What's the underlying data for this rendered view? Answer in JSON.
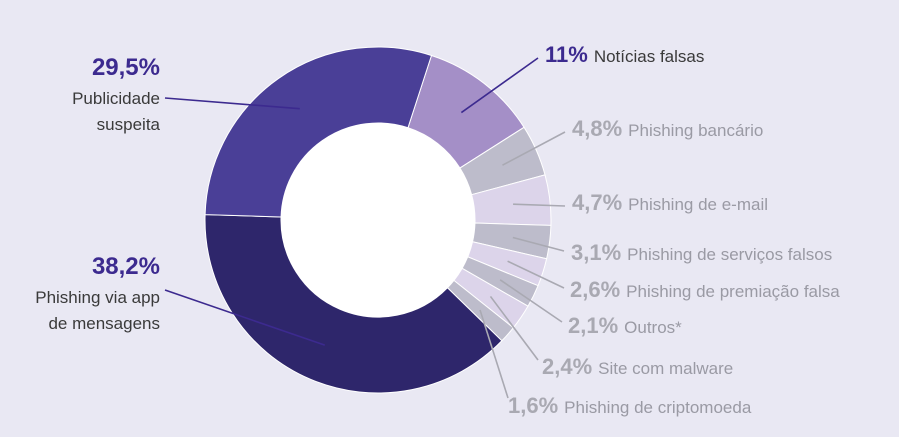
{
  "chart_data": {
    "type": "donut",
    "slices": [
      {
        "pct_label": "11%",
        "label": "Notícias falsas",
        "value": 11,
        "color": "#a48fc7"
      },
      {
        "pct_label": "4,8%",
        "label": "Phishing bancário",
        "value": 4.8,
        "color": "#bdbccb"
      },
      {
        "pct_label": "4,7%",
        "label": "Phishing de e-mail",
        "value": 4.7,
        "color": "#dcd4ea"
      },
      {
        "pct_label": "3,1%",
        "label": "Phishing de serviços falsos",
        "value": 3.1,
        "color": "#bdbccb"
      },
      {
        "pct_label": "2,6%",
        "label": "Phishing de premiação falsa",
        "value": 2.6,
        "color": "#dcd4ea"
      },
      {
        "pct_label": "2,1%",
        "label": "Outros*",
        "value": 2.1,
        "color": "#bdbccb"
      },
      {
        "pct_label": "2,4%",
        "label": "Site com malware",
        "value": 2.4,
        "color": "#dcd4ea"
      },
      {
        "pct_label": "1,6%",
        "label": "Phishing de criptomoeda",
        "value": 1.6,
        "color": "#bdbccb"
      },
      {
        "pct_label": "38,2%",
        "label": "Phishing via app de mensagens",
        "value": 38.2,
        "color": "#2e266b"
      },
      {
        "pct_label": "29,5%",
        "label": "Publicidade suspeita",
        "value": 29.5,
        "color": "#4a3f97"
      }
    ],
    "colors": {
      "highlight_pct": "#3c2a8f",
      "label_dark": "#3a3a3a",
      "label_gray": "#9a9aa4",
      "pct_gray": "#a9a9b2",
      "leader_dark": "#3c2a8f",
      "leader_gray": "#a9a9b2",
      "hole": "#ffffff",
      "background": "#e9e8f3"
    }
  }
}
